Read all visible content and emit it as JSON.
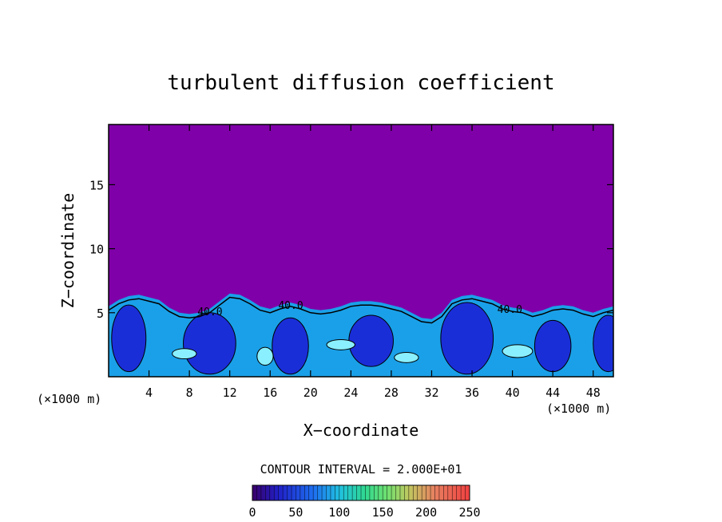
{
  "chart_data": {
    "type": "heatmap",
    "title": "turbulent diffusion coefficient",
    "xlabel": "X−coordinate",
    "ylabel": "Z−coordinate",
    "x_unit_left": "(×1000 m)",
    "x_unit_right": "(×1000 m)",
    "xlim": [
      0,
      50
    ],
    "ylim": [
      0,
      19.7
    ],
    "x_ticks": [
      4,
      8,
      12,
      16,
      20,
      24,
      28,
      32,
      36,
      40,
      44,
      48
    ],
    "x_tick_labels": [
      "4",
      "8",
      "12",
      "16",
      "20",
      "24",
      "28",
      "32",
      "36",
      "40",
      "44",
      "48"
    ],
    "y_ticks": [
      5,
      10,
      15
    ],
    "y_tick_labels": [
      "5",
      "10",
      "15"
    ],
    "contour_interval_text": "CONTOUR INTERVAL = 2.000E+01",
    "contour_labels": [
      {
        "text": "40.0",
        "x": 8.8,
        "z": 4.8
      },
      {
        "text": "40.0",
        "x": 16.8,
        "z": 5.3
      },
      {
        "text": "40.0",
        "x": 38.5,
        "z": 5.0
      }
    ],
    "colorbar": {
      "min": 0,
      "max": 250,
      "ticks": [
        0,
        50,
        100,
        150,
        200,
        250
      ],
      "tick_labels": [
        "0",
        "50",
        "100",
        "150",
        "200",
        "250"
      ]
    },
    "boundary_layer_top_z": [
      [
        0,
        5.5
      ],
      [
        1,
        6.0
      ],
      [
        2,
        6.3
      ],
      [
        3,
        6.4
      ],
      [
        4,
        6.2
      ],
      [
        5,
        6.0
      ],
      [
        6,
        5.4
      ],
      [
        7,
        5.0
      ],
      [
        8,
        4.9
      ],
      [
        9,
        5.0
      ],
      [
        10,
        5.3
      ],
      [
        11,
        5.9
      ],
      [
        12,
        6.5
      ],
      [
        13,
        6.4
      ],
      [
        14,
        6.0
      ],
      [
        15,
        5.5
      ],
      [
        16,
        5.3
      ],
      [
        17,
        5.6
      ],
      [
        18,
        5.8
      ],
      [
        19,
        5.6
      ],
      [
        20,
        5.3
      ],
      [
        21,
        5.2
      ],
      [
        22,
        5.3
      ],
      [
        23,
        5.5
      ],
      [
        24,
        5.8
      ],
      [
        25,
        5.9
      ],
      [
        26,
        5.9
      ],
      [
        27,
        5.8
      ],
      [
        28,
        5.6
      ],
      [
        29,
        5.4
      ],
      [
        30,
        5.0
      ],
      [
        31,
        4.6
      ],
      [
        32,
        4.5
      ],
      [
        33,
        5.0
      ],
      [
        34,
        6.0
      ],
      [
        35,
        6.3
      ],
      [
        36,
        6.4
      ],
      [
        37,
        6.2
      ],
      [
        38,
        6.0
      ],
      [
        39,
        5.6
      ],
      [
        40,
        5.4
      ],
      [
        41,
        5.3
      ],
      [
        42,
        5.0
      ],
      [
        43,
        5.2
      ],
      [
        44,
        5.5
      ],
      [
        45,
        5.6
      ],
      [
        46,
        5.5
      ],
      [
        47,
        5.2
      ],
      [
        48,
        5.0
      ],
      [
        49,
        5.3
      ],
      [
        50,
        5.5
      ]
    ],
    "colors": {
      "background_field": "#7f00a8",
      "low": "#1a2ed8",
      "mid": "#1aa0e8",
      "high": "#8af0ff",
      "contour": "#000000"
    }
  }
}
